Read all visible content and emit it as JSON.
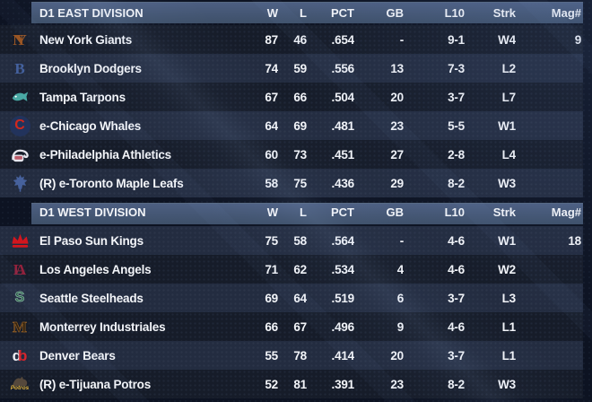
{
  "table": {
    "columns": [
      "W",
      "L",
      "PCT",
      "GB",
      "L10",
      "Strk",
      "Mag#"
    ],
    "divisions": [
      {
        "label": "D1 EAST DIVISION",
        "teams": [
          {
            "name": "New York Giants",
            "w": "87",
            "l": "46",
            "pct": ".654",
            "gb": "-",
            "l10": "9-1",
            "strk": "W4",
            "mag": "9",
            "logo": {
              "kind": "monogram",
              "icon": "ny-monogram-icon",
              "text": "NY",
              "color": "#9a5624",
              "tight": true
            }
          },
          {
            "name": "Brooklyn Dodgers",
            "w": "74",
            "l": "59",
            "pct": ".556",
            "gb": "13",
            "l10": "7-3",
            "strk": "L2",
            "mag": "",
            "logo": {
              "kind": "monogram",
              "icon": "brooklyn-b-icon",
              "text": "B",
              "color": "#44619e"
            }
          },
          {
            "name": "Tampa Tarpons",
            "w": "67",
            "l": "66",
            "pct": ".504",
            "gb": "20",
            "l10": "3-7",
            "strk": "L7",
            "mag": "",
            "logo": {
              "kind": "fish",
              "icon": "tarpon-fish-icon",
              "color": "#49a8a4"
            }
          },
          {
            "name": "e-Chicago Whales",
            "w": "64",
            "l": "69",
            "pct": ".481",
            "gb": "23",
            "l10": "5-5",
            "strk": "W1",
            "mag": "",
            "logo": {
              "kind": "circle-c",
              "icon": "red-c-whale-icon",
              "color": "#d0281e",
              "bg": "#22335c"
            }
          },
          {
            "name": "e-Philadelphia Athletics",
            "w": "60",
            "l": "73",
            "pct": ".451",
            "gb": "27",
            "l10": "2-8",
            "strk": "L4",
            "mag": "",
            "logo": {
              "kind": "elephant",
              "icon": "elephant-icon",
              "color": "#e6e6ee"
            }
          },
          {
            "name": "(R) e-Toronto Maple Leafs",
            "w": "58",
            "l": "75",
            "pct": ".436",
            "gb": "29",
            "l10": "8-2",
            "strk": "W3",
            "mag": "",
            "logo": {
              "kind": "leaf",
              "icon": "maple-leaf-icon",
              "color": "#46619c"
            }
          }
        ]
      },
      {
        "label": "D1 WEST DIVISION",
        "teams": [
          {
            "name": "El Paso Sun Kings",
            "w": "75",
            "l": "58",
            "pct": ".564",
            "gb": "-",
            "l10": "4-6",
            "strk": "W1",
            "mag": "18",
            "logo": {
              "kind": "crown",
              "icon": "crown-icon",
              "color": "#d2161e"
            }
          },
          {
            "name": "Los Angeles Angels",
            "w": "71",
            "l": "62",
            "pct": ".534",
            "gb": "4",
            "l10": "4-6",
            "strk": "W2",
            "mag": "",
            "logo": {
              "kind": "monogram",
              "icon": "la-monogram-icon",
              "text": "LA",
              "color": "#93223d",
              "tight": true
            }
          },
          {
            "name": "Seattle Steelheads",
            "w": "69",
            "l": "64",
            "pct": ".519",
            "gb": "6",
            "l10": "3-7",
            "strk": "L3",
            "mag": "",
            "logo": {
              "kind": "monogram",
              "icon": "s-block-icon",
              "text": "S",
              "color": "#2c5a45",
              "stroke": "#8fc3a9",
              "sans": true
            }
          },
          {
            "name": "Monterrey Industriales",
            "w": "66",
            "l": "67",
            "pct": ".496",
            "gb": "9",
            "l10": "4-6",
            "strk": "L1",
            "mag": "",
            "logo": {
              "kind": "monogram",
              "icon": "m-crown-icon",
              "text": "M",
              "color": "#33230f",
              "stroke": "#8a5a26"
            }
          },
          {
            "name": "Denver Bears",
            "w": "55",
            "l": "78",
            "pct": ".414",
            "gb": "20",
            "l10": "3-7",
            "strk": "L1",
            "mag": "",
            "logo": {
              "kind": "db",
              "icon": "db-circles-icon",
              "colors": [
                "#ecedf2",
                "#d5252d"
              ]
            }
          },
          {
            "name": "(R) e-Tijuana Potros",
            "w": "52",
            "l": "81",
            "pct": ".391",
            "gb": "23",
            "l10": "8-2",
            "strk": "W3",
            "mag": "",
            "logo": {
              "kind": "horse",
              "icon": "potros-horse-icon",
              "color": "#55483c",
              "text": "Potros",
              "text_color": "#e3b43e"
            }
          }
        ]
      }
    ]
  },
  "colors": {
    "header_bar": "#465876",
    "row_dark": "#161c29",
    "row_light": "#232c40",
    "background": "#0d1322",
    "text": "#f3f5f9"
  }
}
